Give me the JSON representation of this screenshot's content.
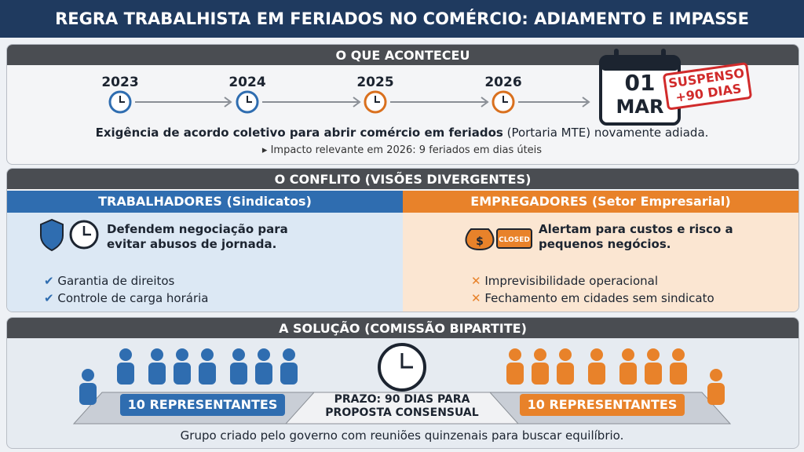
{
  "title": "REGRA TRABALHISTA EM FERIADOS NO COMÉRCIO: ADIAMENTO E IMPASSE",
  "what_happened": {
    "heading": "O QUE ACONTECEU",
    "years": [
      "2023",
      "2024",
      "2025",
      "2026"
    ],
    "calendar": {
      "day": "01",
      "month": "MAR"
    },
    "stamp": [
      "SUSPENSO",
      "+90 DIAS"
    ],
    "summary_bold": "Exigência de acordo coletivo para abrir comércio em feriados",
    "summary_rest": "(Portaria MTE) novamente adiada.",
    "note": "Impacto relevante em 2026: 9 feriados em dias úteis"
  },
  "conflict": {
    "heading": "O CONFLITO (VISÕES DIVERGENTES)",
    "workers": {
      "heading": "TRABALHADORES (Sindicatos)",
      "statement": [
        "Defendem negociação para",
        "evitar abusos de jornada."
      ],
      "points": [
        "Garantia de direitos",
        "Controle de carga horária"
      ]
    },
    "employers": {
      "heading": "EMPREGADORES (Setor Empresarial)",
      "sign": "CLOSED",
      "statement": [
        "Alertam para custos e risco a",
        "pequenos negócios."
      ],
      "points": [
        "Imprevisibilidade operacional",
        "Fechamento em cidades sem sindicato"
      ]
    }
  },
  "solution": {
    "heading": "A SOLUÇÃO (COMISSÃO BIPARTITE)",
    "left_label": "10 REPRESENTANTES",
    "right_label": "10 REPRESENTANTES",
    "deadline": [
      "PRAZO: 90 DIAS PARA",
      "PROPOSTA CONSENSUAL"
    ],
    "footer": "Grupo criado pelo governo com reuniões quinzenais para buscar equilíbrio."
  }
}
